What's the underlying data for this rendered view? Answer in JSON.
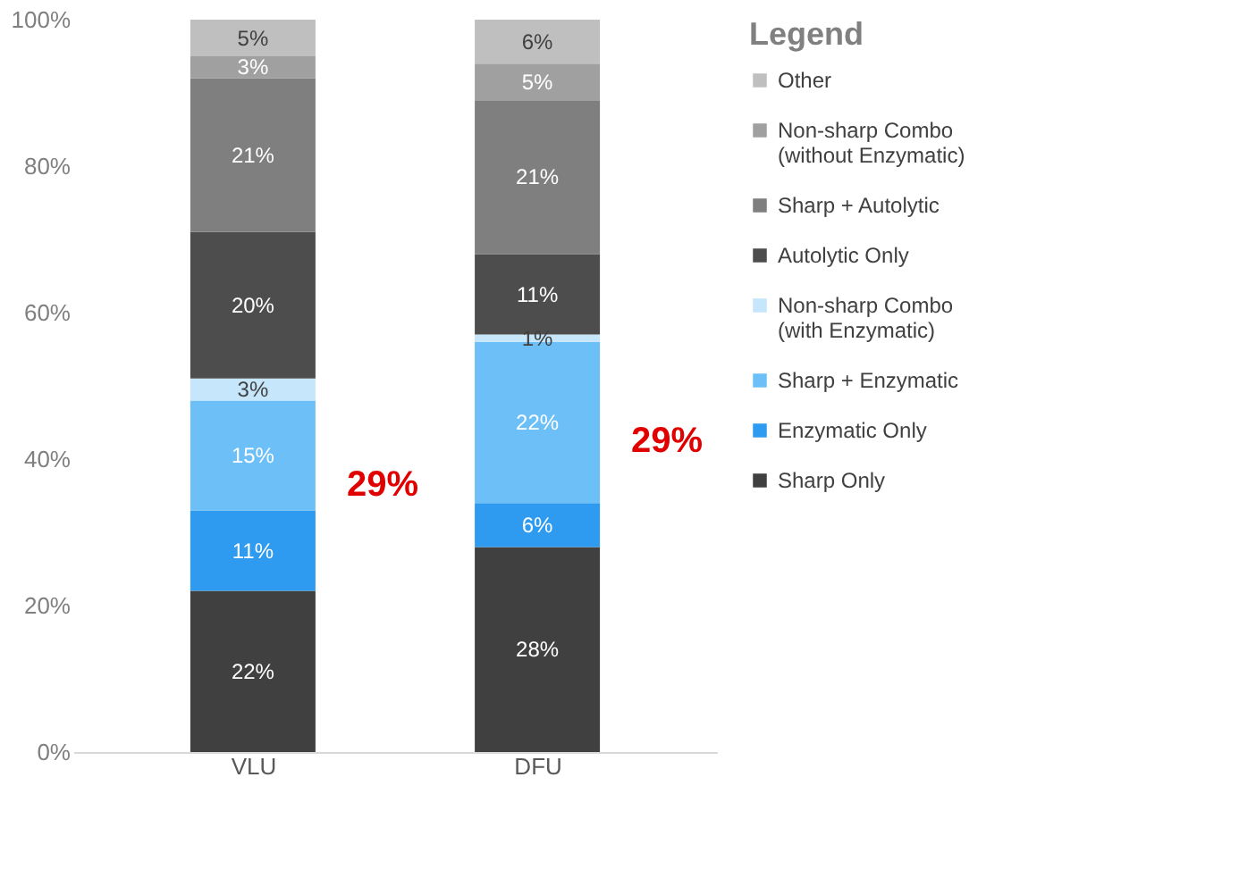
{
  "chart_data": {
    "type": "bar",
    "stacked": true,
    "categories": [
      "VLU",
      "DFU"
    ],
    "legend_title": "Legend",
    "legend": "right",
    "grid": false,
    "ylim": [
      0,
      100
    ],
    "yticks": [
      {
        "value": 0,
        "label": "0%"
      },
      {
        "value": 20,
        "label": "20%"
      },
      {
        "value": 40,
        "label": "40%"
      },
      {
        "value": 60,
        "label": "60%"
      },
      {
        "value": 80,
        "label": "80%"
      },
      {
        "value": 100,
        "label": "100%"
      }
    ],
    "series": [
      {
        "name": "Sharp Only",
        "color": "#404040",
        "values": [
          22,
          28
        ],
        "value_labels": [
          "22%",
          "28%"
        ]
      },
      {
        "name": "Enzymatic Only",
        "color": "#2e9bf0",
        "values": [
          11,
          6
        ],
        "value_labels": [
          "11%",
          "6%"
        ]
      },
      {
        "name": "Sharp + Enzymatic",
        "color": "#6cc0f7",
        "values": [
          15,
          22
        ],
        "value_labels": [
          "15%",
          "22%"
        ]
      },
      {
        "name": "Non-sharp Combo (with Enzymatic)",
        "color": "#c5e6fb",
        "values": [
          3,
          1
        ],
        "value_labels": [
          "3%",
          "1%"
        ]
      },
      {
        "name": "Autolytic Only",
        "color": "#4d4d4d",
        "values": [
          20,
          11
        ],
        "value_labels": [
          "20%",
          "11%"
        ]
      },
      {
        "name": "Sharp + Autolytic",
        "color": "#7f7f7f",
        "values": [
          21,
          21
        ],
        "value_labels": [
          "21%",
          "21%"
        ]
      },
      {
        "name": "Non-sharp Combo (without Enzymatic)",
        "color": "#a0a0a0",
        "values": [
          3,
          5
        ],
        "value_labels": [
          "3%",
          "5%"
        ]
      },
      {
        "name": "Other",
        "color": "#bfbfbf",
        "values": [
          5,
          6
        ],
        "value_labels": [
          "5%",
          "6%"
        ]
      }
    ],
    "annotations": [
      "29%",
      "29%"
    ]
  }
}
